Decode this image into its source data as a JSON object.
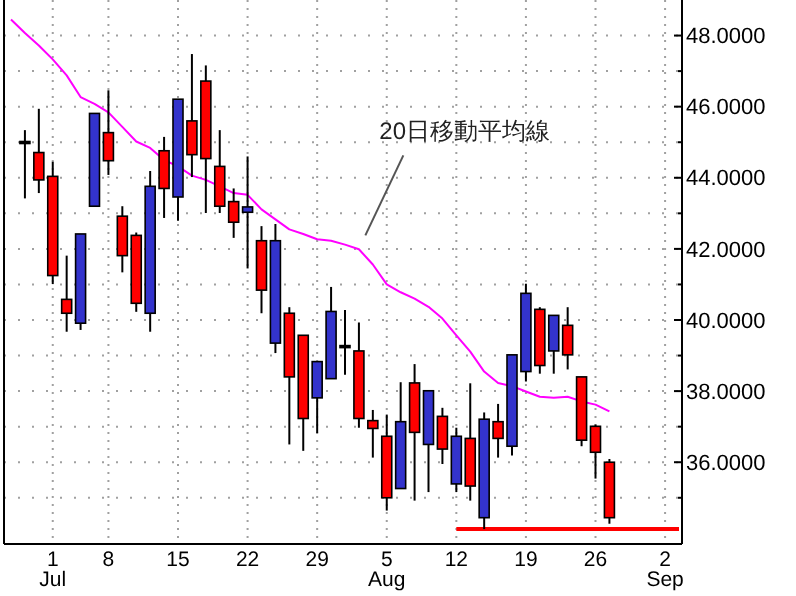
{
  "chart_data": {
    "type": "candlestick",
    "categories": [
      null,
      null,
      null,
      "1\nJul",
      null,
      null,
      null,
      "8",
      null,
      null,
      null,
      null,
      "15",
      null,
      null,
      null,
      null,
      "22",
      null,
      null,
      null,
      null,
      "29",
      null,
      null,
      null,
      null,
      "5\nAug",
      null,
      null,
      null,
      null,
      "12",
      null,
      null,
      null,
      null,
      "19",
      null,
      null,
      null,
      null,
      "26",
      null,
      null,
      null,
      null,
      "2\nSep",
      null
    ],
    "ohlc": [
      null,
      [
        45.02,
        45.34,
        43.42,
        45.02
      ],
      [
        44.71,
        45.94,
        43.57,
        43.94
      ],
      [
        44.04,
        44.45,
        41.01,
        41.25
      ],
      [
        40.58,
        41.81,
        39.67,
        40.19
      ],
      [
        39.91,
        42.42,
        39.72,
        42.42
      ],
      [
        43.2,
        45.81,
        43.2,
        45.81
      ],
      [
        45.27,
        46.46,
        44.08,
        44.48
      ],
      [
        42.92,
        43.2,
        41.34,
        41.81
      ],
      [
        42.38,
        42.46,
        40.23,
        40.47
      ],
      [
        40.19,
        44.19,
        39.67,
        43.76
      ],
      [
        44.76,
        45.15,
        42.87,
        43.7
      ],
      [
        43.46,
        46.21,
        42.79,
        46.21
      ],
      [
        45.6,
        47.48,
        44.02,
        44.65
      ],
      [
        46.72,
        47.16,
        43.01,
        44.54
      ],
      [
        44.32,
        45.34,
        43.01,
        43.2
      ],
      [
        43.33,
        43.7,
        42.31,
        42.75
      ],
      [
        43.03,
        44.6,
        41.45,
        43.18
      ],
      [
        42.23,
        42.64,
        40.19,
        40.84
      ],
      [
        39.35,
        42.7,
        39.07,
        42.23
      ],
      [
        40.19,
        40.36,
        36.5,
        38.4
      ],
      [
        39.57,
        39.57,
        36.32,
        37.23
      ],
      [
        37.81,
        38.83,
        36.82,
        38.83
      ],
      [
        38.35,
        40.93,
        38.35,
        40.24
      ],
      [
        39.28,
        40.28,
        38.46,
        39.28
      ],
      [
        39.13,
        39.93,
        36.97,
        37.23
      ],
      [
        37.17,
        37.47,
        36.13,
        36.95
      ],
      [
        36.73,
        37.34,
        34.64,
        35.0
      ],
      [
        35.26,
        38.25,
        35.26,
        37.14
      ],
      [
        38.23,
        38.76,
        34.92,
        36.84
      ],
      [
        36.5,
        38.01,
        35.16,
        38.01
      ],
      [
        37.29,
        37.53,
        35.95,
        36.37
      ],
      [
        35.39,
        36.97,
        35.16,
        36.73
      ],
      [
        36.67,
        38.22,
        34.92,
        35.33
      ],
      [
        34.44,
        37.4,
        34.12,
        37.21
      ],
      [
        37.14,
        37.64,
        36.13,
        36.67
      ],
      [
        36.45,
        39.02,
        36.19,
        39.02
      ],
      [
        38.55,
        41.02,
        38.27,
        40.75
      ],
      [
        40.3,
        40.36,
        38.49,
        38.72
      ],
      [
        39.13,
        40.13,
        38.49,
        40.13
      ],
      [
        39.85,
        40.36,
        38.61,
        39.02
      ],
      [
        38.4,
        38.4,
        36.45,
        36.62
      ],
      [
        37.01,
        37.06,
        35.54,
        36.28
      ],
      [
        36.0,
        36.09,
        34.27,
        34.44
      ],
      null,
      null,
      null,
      null,
      null
    ],
    "colors": [
      null,
      "#000000",
      "#ff0000",
      "#ff0000",
      "#ff0000",
      "#3333cc",
      "#3333cc",
      "#ff0000",
      "#ff0000",
      "#ff0000",
      "#3333cc",
      "#ff0000",
      "#3333cc",
      "#ff0000",
      "#ff0000",
      "#ff0000",
      "#ff0000",
      "#3333cc",
      "#ff0000",
      "#3333cc",
      "#ff0000",
      "#ff0000",
      "#3333cc",
      "#3333cc",
      "#000000",
      "#ff0000",
      "#ff0000",
      "#ff0000",
      "#3333cc",
      "#ff0000",
      "#3333cc",
      "#ff0000",
      "#3333cc",
      "#ff0000",
      "#3333cc",
      "#ff0000",
      "#3333cc",
      "#3333cc",
      "#ff0000",
      "#3333cc",
      "#ff0000",
      "#ff0000",
      "#ff0000",
      "#ff0000",
      null,
      null,
      null,
      null,
      null
    ],
    "series": [
      {
        "type": "line",
        "color": "#ff00ff",
        "values": [
          48.45,
          48.07,
          47.72,
          47.33,
          46.88,
          46.27,
          46.08,
          45.84,
          45.43,
          45.02,
          44.84,
          44.5,
          44.32,
          44.06,
          43.94,
          43.76,
          43.57,
          43.52,
          43.11,
          42.83,
          42.55,
          42.42,
          42.27,
          42.23,
          42.12,
          41.99,
          41.56,
          41.0,
          40.78,
          40.6,
          40.37,
          40.04,
          39.57,
          39.11,
          38.55,
          38.23,
          38.14,
          37.99,
          37.84,
          37.81,
          37.84,
          37.71,
          37.62,
          37.43,
          null,
          null,
          null,
          null,
          null
        ]
      },
      {
        "type": "line",
        "color": "#ff0000",
        "values": [
          null,
          null,
          null,
          null,
          null,
          null,
          null,
          null,
          null,
          null,
          null,
          null,
          null,
          null,
          null,
          null,
          null,
          null,
          null,
          null,
          null,
          null,
          null,
          null,
          null,
          null,
          null,
          null,
          null,
          null,
          null,
          null,
          34.12,
          34.12,
          34.12,
          34.12,
          34.12,
          34.12,
          34.12,
          34.12,
          34.12,
          34.12,
          34.12,
          34.12,
          34.12,
          34.12,
          34.12,
          34.12,
          34.12
        ]
      }
    ],
    "ylim": [
      33.7,
      49
    ],
    "yticks": [
      {
        "value": 35,
        "label": null
      },
      {
        "value": 36,
        "label": "36.0000"
      },
      {
        "value": 37,
        "label": null
      },
      {
        "value": 38,
        "label": "38.0000"
      },
      {
        "value": 39,
        "label": null
      },
      {
        "value": 40,
        "label": "40.0000"
      },
      {
        "value": 41,
        "label": null
      },
      {
        "value": 42,
        "label": "42.0000"
      },
      {
        "value": 43,
        "label": null
      },
      {
        "value": 44,
        "label": "44.0000"
      },
      {
        "value": 45,
        "label": null
      },
      {
        "value": 46,
        "label": "46.0000"
      },
      {
        "value": 47,
        "label": null
      },
      {
        "value": 48,
        "label": "48.0000"
      }
    ],
    "grid": true,
    "annotations": [
      "20日移動平均線"
    ]
  }
}
